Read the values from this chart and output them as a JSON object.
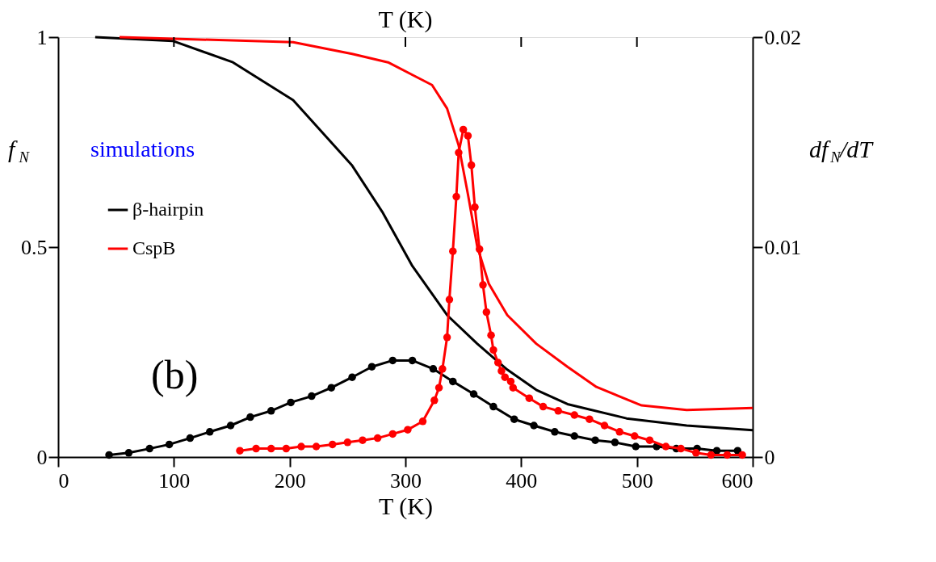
{
  "chart_data": {
    "type": "line",
    "xlabel": "T (K)",
    "x2label": "T (K)",
    "ylabel": "f$_{N}$",
    "y2label": "df$_{N}$/dT",
    "xlim": [
      0,
      600
    ],
    "xticks": [
      0,
      100,
      200,
      300,
      400,
      500,
      600
    ],
    "ylim": [
      0,
      1
    ],
    "yticks": [
      0,
      0.5,
      1
    ],
    "y2lim": [
      0,
      0.02
    ],
    "y2ticks": [
      0,
      0.01,
      0.02
    ],
    "grid": false,
    "legend": "top left",
    "annotations": [
      "simulations",
      "(b)"
    ],
    "series": [
      {
        "name": "β-hairpin",
        "color": "#000000",
        "marker": "none",
        "x": [
          32,
          99,
          151,
          203,
          254,
          280,
          306,
          336,
          362,
          388,
          413,
          440,
          491,
          543,
          600
        ],
        "values": [
          1,
          0.991,
          0.94,
          0.85,
          0.694,
          0.584,
          0.455,
          0.338,
          0.27,
          0.208,
          0.16,
          0.126,
          0.092,
          0.075,
          0.064
        ]
      },
      {
        "name": "CspB",
        "color": "#ff0000",
        "marker": "none",
        "x": [
          53,
          203,
          254,
          285,
          323,
          336,
          346,
          354,
          362,
          372,
          388,
          413,
          440,
          465,
          504,
          543,
          600
        ],
        "values": [
          1,
          0.988,
          0.96,
          0.94,
          0.886,
          0.83,
          0.742,
          0.626,
          0.502,
          0.413,
          0.338,
          0.27,
          0.215,
          0.167,
          0.123,
          0.112,
          0.117
        ]
      },
      {
        "color": "#000000",
        "marker": "circle",
        "axis": "y2",
        "x": [
          44,
          61,
          79,
          96,
          114,
          131,
          149,
          166,
          184,
          201,
          219,
          236,
          254,
          271,
          289,
          306,
          324,
          341,
          359,
          376,
          394,
          411,
          429,
          446,
          464,
          481,
          499,
          517,
          534,
          552,
          569,
          587
        ],
        "values": [
          0.0001,
          0.0002,
          0.0004,
          0.0006,
          0.0009,
          0.0012,
          0.0015,
          0.0019,
          0.0022,
          0.0026,
          0.0029,
          0.0033,
          0.0038,
          0.0043,
          0.0046,
          0.0046,
          0.0042,
          0.0036,
          0.003,
          0.0024,
          0.0018,
          0.0015,
          0.0012,
          0.001,
          0.0008,
          0.0007,
          0.0005,
          0.0005,
          0.0004,
          0.0004,
          0.0003,
          0.0003
        ]
      },
      {
        "color": "#ff0000",
        "marker": "circle",
        "axis": "y2",
        "x": [
          157,
          171,
          184,
          197,
          210,
          223,
          237,
          250,
          263,
          276,
          289,
          302,
          315,
          325,
          329,
          332,
          336,
          338,
          341,
          344,
          346,
          350,
          354,
          357,
          360,
          364,
          367,
          370,
          374,
          376,
          380,
          383,
          386,
          391,
          393,
          407,
          419,
          432,
          446,
          459,
          472,
          485,
          498,
          511,
          525,
          538,
          551,
          564,
          578,
          591
        ],
        "values": [
          0.0003,
          0.0004,
          0.0004,
          0.0004,
          0.0005,
          0.0005,
          0.0006,
          0.0007,
          0.0008,
          0.0009,
          0.0011,
          0.0013,
          0.0017,
          0.0027,
          0.0033,
          0.0042,
          0.0057,
          0.0075,
          0.0098,
          0.0124,
          0.0145,
          0.0156,
          0.0153,
          0.0139,
          0.0119,
          0.0099,
          0.0082,
          0.0069,
          0.0058,
          0.0051,
          0.0045,
          0.0041,
          0.0038,
          0.0036,
          0.0033,
          0.0028,
          0.0024,
          0.0022,
          0.002,
          0.0018,
          0.0015,
          0.0012,
          0.001,
          0.0008,
          0.0005,
          0.0004,
          0.0002,
          0.0001,
          0.0001,
          0.0001
        ]
      }
    ]
  }
}
